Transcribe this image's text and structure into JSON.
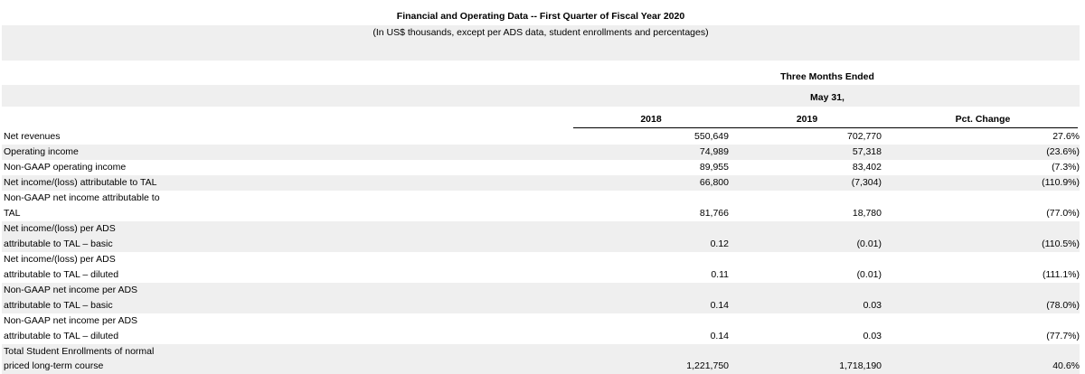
{
  "title": "Financial and Operating Data -- First Quarter of Fiscal Year 2020",
  "subtitle": "(In US$ thousands, except per ADS data, student enrollments and percentages)",
  "header": {
    "period": "Three Months Ended",
    "date": "May 31,",
    "col_2018": "2018",
    "col_2019": "2019",
    "col_pct": "Pct. Change"
  },
  "rows": [
    {
      "label": "Net revenues",
      "v2018": "550,649",
      "v2019": "702,770",
      "pct": "27.6%"
    },
    {
      "label": "Operating income",
      "v2018": "74,989",
      "v2019": "57,318",
      "pct": "(23.6%)"
    },
    {
      "label": "Non-GAAP operating income",
      "v2018": "89,955",
      "v2019": "83,402",
      "pct": "(7.3%)"
    },
    {
      "label": "Net income/(loss) attributable to TAL",
      "v2018": "66,800",
      "v2019": "(7,304)",
      "pct": "(110.9%)"
    },
    {
      "label1": "Non-GAAP net income attributable to",
      "label2": "TAL",
      "v2018": "81,766",
      "v2019": "18,780",
      "pct": "(77.0%)"
    },
    {
      "label1": "Net income/(loss) per ADS",
      "label2": "attributable to TAL – basic",
      "v2018": "0.12",
      "v2019": "(0.01)",
      "pct": "(110.5%)"
    },
    {
      "label1": "Net income/(loss) per ADS",
      "label2": "attributable to TAL – diluted",
      "v2018": "0.11",
      "v2019": "(0.01)",
      "pct": "(111.1%)"
    },
    {
      "label1": "Non-GAAP net income per ADS",
      "label2": "attributable to TAL – basic",
      "v2018": "0.14",
      "v2019": "0.03",
      "pct": "(78.0%)"
    },
    {
      "label1": "Non-GAAP net income per ADS",
      "label2": "attributable to TAL – diluted",
      "v2018": "0.14",
      "v2019": "0.03",
      "pct": "(77.7%)"
    },
    {
      "label1": "Total Student Enrollments of normal",
      "label2": "priced long-term course",
      "v2018": "1,221,750",
      "v2019": "1,718,190",
      "pct": "40.6%"
    }
  ]
}
